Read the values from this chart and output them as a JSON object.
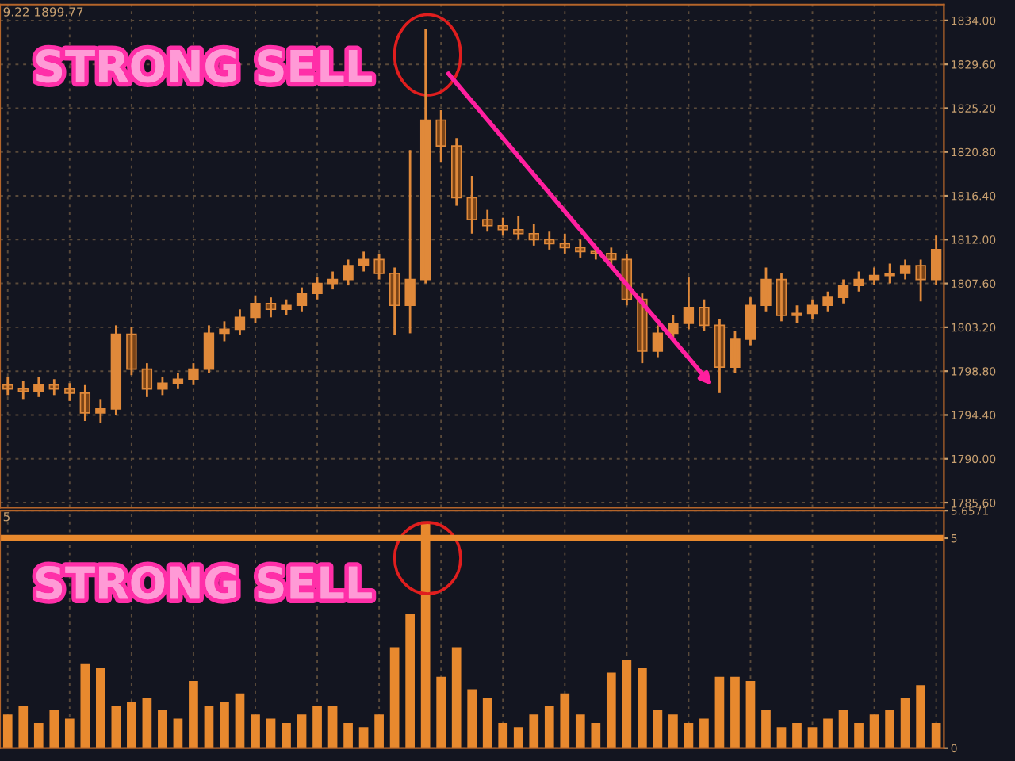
{
  "chart_data": [
    {
      "type": "candlestick",
      "color": "#e0893a",
      "categories": [
        null,
        null,
        null,
        null,
        null,
        null,
        null,
        null,
        null,
        null,
        null,
        null,
        null,
        null,
        null,
        null,
        null,
        null,
        null,
        null,
        null,
        null,
        null,
        null,
        null,
        null,
        null,
        null,
        null,
        null,
        null,
        null,
        null,
        null,
        null,
        null,
        null,
        null,
        null,
        null,
        null,
        null,
        null,
        null,
        null,
        null,
        null,
        null,
        null,
        null,
        null,
        null,
        null,
        null,
        null,
        null,
        null,
        null,
        null,
        null,
        null
      ],
      "ohlc": [
        [
          1797.4,
          1798.2,
          1796.4,
          1797.0
        ],
        [
          1797.0,
          1797.8,
          1796.0,
          1796.8
        ],
        [
          1796.8,
          1798.2,
          1796.2,
          1797.4
        ],
        [
          1797.4,
          1798.0,
          1796.4,
          1797.0
        ],
        [
          1797.0,
          1797.6,
          1795.8,
          1796.6
        ],
        [
          1796.6,
          1797.4,
          1793.8,
          1794.6
        ],
        [
          1794.6,
          1796.0,
          1793.6,
          1795.0
        ],
        [
          1795.0,
          1803.4,
          1794.4,
          1802.5
        ],
        [
          1802.5,
          1803.2,
          1798.4,
          1799.0
        ],
        [
          1799.0,
          1799.6,
          1796.2,
          1797.0
        ],
        [
          1797.0,
          1798.2,
          1796.4,
          1797.6
        ],
        [
          1797.6,
          1798.6,
          1797.0,
          1798.0
        ],
        [
          1798.0,
          1799.6,
          1797.4,
          1799.0
        ],
        [
          1799.0,
          1803.4,
          1798.6,
          1802.6
        ],
        [
          1802.6,
          1803.8,
          1801.8,
          1803.0
        ],
        [
          1803.0,
          1805.0,
          1802.4,
          1804.2
        ],
        [
          1804.2,
          1806.4,
          1803.6,
          1805.6
        ],
        [
          1805.6,
          1806.2,
          1804.2,
          1805.0
        ],
        [
          1805.0,
          1806.0,
          1804.4,
          1805.4
        ],
        [
          1805.4,
          1807.2,
          1804.8,
          1806.6
        ],
        [
          1806.6,
          1808.2,
          1806.0,
          1807.6
        ],
        [
          1807.6,
          1808.8,
          1807.0,
          1808.0
        ],
        [
          1808.0,
          1810.0,
          1807.4,
          1809.4
        ],
        [
          1809.4,
          1810.8,
          1808.8,
          1810.0
        ],
        [
          1810.0,
          1810.6,
          1808.0,
          1808.6
        ],
        [
          1808.6,
          1809.2,
          1802.4,
          1805.4
        ],
        [
          1805.4,
          1821.0,
          1802.6,
          1808.0
        ],
        [
          1808.0,
          1833.2,
          1807.6,
          1824.0
        ],
        [
          1824.0,
          1825.0,
          1819.8,
          1821.4
        ],
        [
          1821.4,
          1822.2,
          1815.4,
          1816.2
        ],
        [
          1816.2,
          1818.4,
          1812.6,
          1814.0
        ],
        [
          1814.0,
          1815.0,
          1812.8,
          1813.4
        ],
        [
          1813.4,
          1814.2,
          1812.4,
          1813.0
        ],
        [
          1813.0,
          1814.4,
          1812.0,
          1812.6
        ],
        [
          1812.6,
          1813.6,
          1811.4,
          1812.0
        ],
        [
          1812.0,
          1812.8,
          1811.0,
          1811.6
        ],
        [
          1811.6,
          1812.6,
          1810.6,
          1811.2
        ],
        [
          1811.2,
          1812.0,
          1810.2,
          1810.8
        ],
        [
          1810.8,
          1811.4,
          1810.0,
          1810.6
        ],
        [
          1810.6,
          1811.2,
          1809.4,
          1810.0
        ],
        [
          1810.0,
          1810.6,
          1805.4,
          1806.0
        ],
        [
          1806.0,
          1806.6,
          1799.6,
          1800.8
        ],
        [
          1800.8,
          1803.4,
          1800.2,
          1802.6
        ],
        [
          1802.6,
          1804.4,
          1802.0,
          1803.6
        ],
        [
          1803.6,
          1808.2,
          1803.0,
          1805.2
        ],
        [
          1805.2,
          1806.0,
          1802.8,
          1803.4
        ],
        [
          1803.4,
          1804.0,
          1796.6,
          1799.2
        ],
        [
          1799.2,
          1802.8,
          1798.6,
          1802.0
        ],
        [
          1802.0,
          1806.2,
          1801.4,
          1805.4
        ],
        [
          1805.4,
          1809.2,
          1804.8,
          1808.0
        ],
        [
          1808.0,
          1808.6,
          1803.8,
          1804.4
        ],
        [
          1804.4,
          1805.4,
          1803.6,
          1804.6
        ],
        [
          1804.6,
          1806.0,
          1804.0,
          1805.4
        ],
        [
          1805.4,
          1806.8,
          1804.8,
          1806.2
        ],
        [
          1806.2,
          1808.0,
          1805.6,
          1807.4
        ],
        [
          1807.4,
          1808.8,
          1806.8,
          1808.0
        ],
        [
          1808.0,
          1809.2,
          1807.4,
          1808.4
        ],
        [
          1808.4,
          1809.6,
          1807.6,
          1808.6
        ],
        [
          1808.6,
          1810.0,
          1808.0,
          1809.4
        ],
        [
          1809.4,
          1810.0,
          1805.8,
          1808.0
        ],
        [
          1808.0,
          1812.4,
          1807.4,
          1811.0
        ]
      ],
      "ylim": [
        1785.1,
        1835.6
      ],
      "yticks": [
        {
          "value": 1785.6,
          "label": "1785.60"
        },
        {
          "value": 1790.0,
          "label": "1790.00"
        },
        {
          "value": 1794.4,
          "label": "1794.40"
        },
        {
          "value": 1798.8,
          "label": "1798.80"
        },
        {
          "value": 1803.2,
          "label": "1803.20"
        },
        {
          "value": 1807.6,
          "label": "1807.60"
        },
        {
          "value": 1812.0,
          "label": "1812.00"
        },
        {
          "value": 1816.4,
          "label": "1816.40"
        },
        {
          "value": 1820.8,
          "label": "1820.80"
        },
        {
          "value": 1825.2,
          "label": "1825.20"
        },
        {
          "value": 1829.6,
          "label": "1829.60"
        },
        {
          "value": 1834.0,
          "label": "1834.00"
        }
      ],
      "grid": true,
      "tick_labels": "y",
      "annotations": [
        "9.22 1899.77",
        "STRONG SELL"
      ]
    },
    {
      "type": "bar",
      "color": "#e8892e",
      "categories": [
        null,
        null,
        null,
        null,
        null,
        null,
        null,
        null,
        null,
        null,
        null,
        null,
        null,
        null,
        null,
        null,
        null,
        null,
        null,
        null,
        null,
        null,
        null,
        null,
        null,
        null,
        null,
        null,
        null,
        null,
        null,
        null,
        null,
        null,
        null,
        null,
        null,
        null,
        null,
        null,
        null,
        null,
        null,
        null,
        null,
        null,
        null,
        null,
        null,
        null,
        null,
        null,
        null,
        null,
        null,
        null,
        null,
        null,
        null,
        null,
        null
      ],
      "values": [
        0.8,
        1.0,
        0.6,
        0.9,
        0.7,
        2.0,
        1.9,
        1.0,
        1.1,
        1.2,
        0.9,
        0.7,
        1.6,
        1.0,
        1.1,
        1.3,
        0.8,
        0.7,
        0.6,
        0.8,
        1.0,
        1.0,
        0.6,
        0.5,
        0.8,
        2.4,
        3.2,
        5.4,
        1.7,
        2.4,
        1.4,
        1.2,
        0.6,
        0.5,
        0.8,
        1.0,
        1.3,
        0.8,
        0.6,
        1.8,
        2.1,
        1.9,
        0.9,
        0.8,
        0.6,
        0.7,
        1.7,
        1.7,
        1.6,
        0.9,
        0.5,
        0.6,
        0.5,
        0.7,
        0.9,
        0.6,
        0.8,
        0.9,
        1.2,
        1.5,
        0.6
      ],
      "ylim": [
        0,
        5.6571
      ],
      "yticks": [
        0,
        5,
        5.6571
      ],
      "ref_lines": [
        {
          "axis": "y",
          "value": 5,
          "color": "#e8892e"
        }
      ],
      "grid": true,
      "tick_labels": "y",
      "annotations": [
        "5",
        "STRONG SELL"
      ]
    }
  ]
}
